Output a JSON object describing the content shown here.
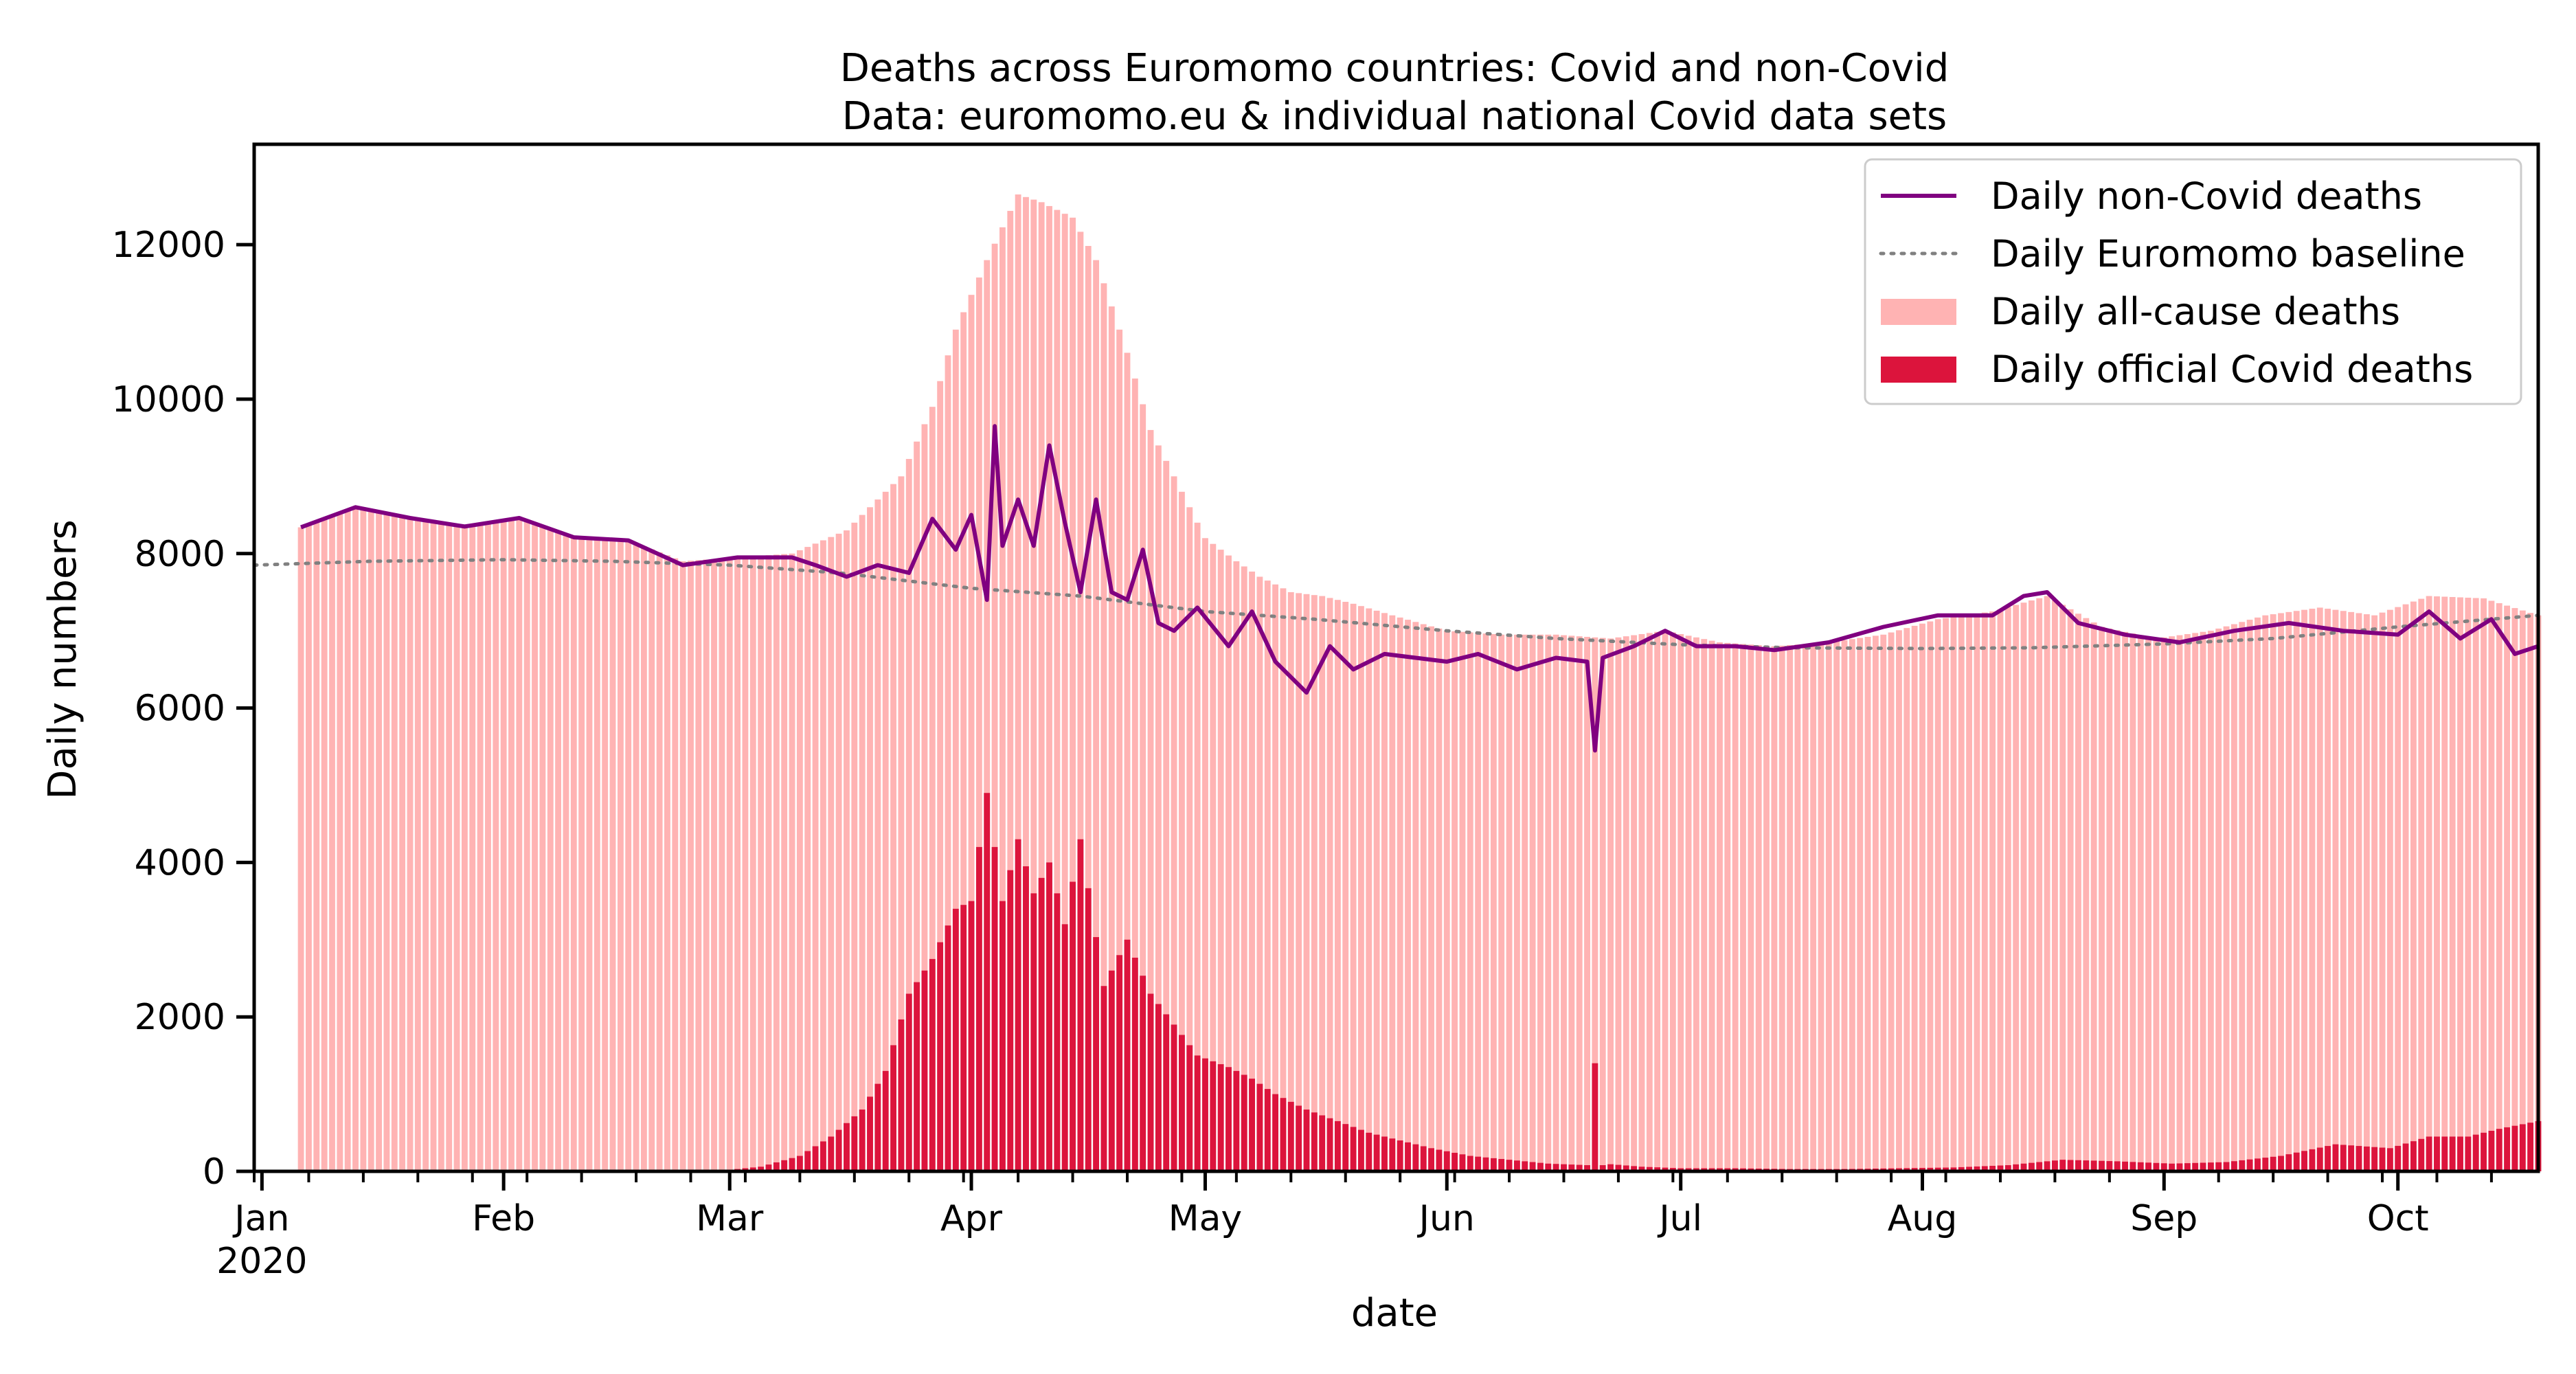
{
  "chart_data": {
    "type": "bar",
    "title": "Deaths across Euromomo countries:  Covid and non-Covid",
    "subtitle": "Data: euromomo.eu & individual national Covid data sets",
    "xlabel": "date",
    "ylabel": "Daily numbers",
    "x_ticks": [
      "Jan\n2020",
      "Feb",
      "Mar",
      "Apr",
      "May",
      "Jun",
      "Jul",
      "Aug",
      "Sep",
      "Oct"
    ],
    "x_range": [
      "2019-12-31",
      "2020-10-19"
    ],
    "y_ticks": [
      "0",
      "2000",
      "4000",
      "6000",
      "8000",
      "10000",
      "12000"
    ],
    "ylim": [
      0,
      13300
    ],
    "grid": false,
    "legend_position": "top-right",
    "colors": {
      "non_covid": "#800080",
      "baseline": "#808080",
      "all_cause": "#ffb3b3",
      "covid": "#dc143c"
    },
    "legend": [
      {
        "label": "Daily non-Covid deaths",
        "kind": "line",
        "color": "#800080"
      },
      {
        "label": "Daily Euromomo baseline",
        "kind": "dotted",
        "color": "#808080"
      },
      {
        "label": "Daily all-cause deaths",
        "kind": "patch",
        "color": "#ffb3b3"
      },
      {
        "label": "Daily official Covid deaths",
        "kind": "patch",
        "color": "#dc143c"
      }
    ],
    "series": [
      {
        "name": "Daily all-cause deaths",
        "type": "bar",
        "x": [
          "2020-01-06",
          "2020-01-13",
          "2020-01-20",
          "2020-01-27",
          "2020-02-03",
          "2020-02-10",
          "2020-02-17",
          "2020-02-24",
          "2020-03-02",
          "2020-03-09",
          "2020-03-16",
          "2020-03-23",
          "2020-03-27",
          "2020-03-30",
          "2020-04-03",
          "2020-04-07",
          "2020-04-10",
          "2020-04-14",
          "2020-04-17",
          "2020-04-21",
          "2020-04-24",
          "2020-04-28",
          "2020-05-01",
          "2020-05-05",
          "2020-05-08",
          "2020-05-12",
          "2020-05-16",
          "2020-05-20",
          "2020-05-25",
          "2020-06-01",
          "2020-06-08",
          "2020-06-15",
          "2020-06-22",
          "2020-06-29",
          "2020-07-06",
          "2020-07-13",
          "2020-07-20",
          "2020-07-27",
          "2020-08-03",
          "2020-08-10",
          "2020-08-17",
          "2020-08-24",
          "2020-08-31",
          "2020-09-07",
          "2020-09-14",
          "2020-09-21",
          "2020-09-28",
          "2020-10-05",
          "2020-10-12",
          "2020-10-19"
        ],
        "values": [
          8340,
          8600,
          8460,
          8350,
          8460,
          8210,
          8170,
          7900,
          7950,
          8000,
          8300,
          9000,
          9900,
          10900,
          11800,
          12650,
          12550,
          12350,
          11800,
          10600,
          9600,
          8800,
          8200,
          7900,
          7700,
          7500,
          7450,
          7350,
          7200,
          7000,
          6950,
          6950,
          6900,
          7000,
          6850,
          6800,
          6850,
          6950,
          7150,
          7250,
          7450,
          7050,
          6900,
          7000,
          7200,
          7300,
          7200,
          7450,
          7420,
          7200
        ]
      },
      {
        "name": "Daily non-Covid deaths",
        "type": "line",
        "x": [
          "2020-01-06",
          "2020-01-13",
          "2020-01-20",
          "2020-01-27",
          "2020-02-03",
          "2020-02-10",
          "2020-02-17",
          "2020-02-24",
          "2020-03-02",
          "2020-03-09",
          "2020-03-12",
          "2020-03-16",
          "2020-03-20",
          "2020-03-24",
          "2020-03-27",
          "2020-03-30",
          "2020-04-01",
          "2020-04-03",
          "2020-04-04",
          "2020-04-05",
          "2020-04-07",
          "2020-04-09",
          "2020-04-11",
          "2020-04-13",
          "2020-04-15",
          "2020-04-17",
          "2020-04-19",
          "2020-04-21",
          "2020-04-23",
          "2020-04-25",
          "2020-04-27",
          "2020-04-30",
          "2020-05-04",
          "2020-05-07",
          "2020-05-10",
          "2020-05-14",
          "2020-05-17",
          "2020-05-20",
          "2020-05-24",
          "2020-05-28",
          "2020-06-01",
          "2020-06-05",
          "2020-06-10",
          "2020-06-15",
          "2020-06-19",
          "2020-06-20",
          "2020-06-21",
          "2020-06-25",
          "2020-06-29",
          "2020-07-03",
          "2020-07-08",
          "2020-07-13",
          "2020-07-20",
          "2020-07-27",
          "2020-08-03",
          "2020-08-10",
          "2020-08-14",
          "2020-08-17",
          "2020-08-21",
          "2020-08-27",
          "2020-09-03",
          "2020-09-10",
          "2020-09-17",
          "2020-09-24",
          "2020-10-01",
          "2020-10-05",
          "2020-10-09",
          "2020-10-13",
          "2020-10-16",
          "2020-10-19"
        ],
        "values": [
          8340,
          8600,
          8460,
          8350,
          8460,
          8210,
          8170,
          7850,
          7950,
          7950,
          7850,
          7700,
          7850,
          7750,
          8450,
          8050,
          8500,
          7400,
          9650,
          8100,
          8700,
          8100,
          9400,
          8400,
          7500,
          8700,
          7500,
          7400,
          8050,
          7100,
          7000,
          7300,
          6800,
          7250,
          6600,
          6200,
          6800,
          6500,
          6700,
          6650,
          6600,
          6700,
          6500,
          6650,
          6600,
          5450,
          6650,
          6800,
          7000,
          6800,
          6800,
          6750,
          6850,
          7050,
          7200,
          7200,
          7450,
          7500,
          7100,
          6950,
          6850,
          7000,
          7100,
          7000,
          6950,
          7250,
          6900,
          7150,
          6700,
          6800
        ]
      },
      {
        "name": "Daily Euromomo baseline",
        "type": "line",
        "x": [
          "2019-12-31",
          "2020-01-15",
          "2020-02-01",
          "2020-02-15",
          "2020-03-01",
          "2020-03-15",
          "2020-04-01",
          "2020-04-15",
          "2020-05-01",
          "2020-05-15",
          "2020-06-01",
          "2020-06-15",
          "2020-07-01",
          "2020-07-15",
          "2020-08-01",
          "2020-08-15",
          "2020-09-01",
          "2020-09-15",
          "2020-10-01",
          "2020-10-19"
        ],
        "values": [
          7850,
          7900,
          7920,
          7900,
          7850,
          7750,
          7550,
          7450,
          7250,
          7150,
          7000,
          6900,
          6820,
          6780,
          6770,
          6780,
          6830,
          6900,
          7050,
          7200
        ]
      },
      {
        "name": "Daily official Covid deaths",
        "type": "bar",
        "x": [
          "2020-03-01",
          "2020-03-05",
          "2020-03-10",
          "2020-03-14",
          "2020-03-18",
          "2020-03-21",
          "2020-03-24",
          "2020-03-27",
          "2020-03-30",
          "2020-04-01",
          "2020-04-03",
          "2020-04-05",
          "2020-04-07",
          "2020-04-09",
          "2020-04-11",
          "2020-04-13",
          "2020-04-15",
          "2020-04-18",
          "2020-04-21",
          "2020-04-24",
          "2020-04-27",
          "2020-04-30",
          "2020-05-04",
          "2020-05-07",
          "2020-05-10",
          "2020-05-14",
          "2020-05-18",
          "2020-05-22",
          "2020-05-26",
          "2020-05-30",
          "2020-06-04",
          "2020-06-09",
          "2020-06-14",
          "2020-06-19",
          "2020-06-20",
          "2020-06-21",
          "2020-06-26",
          "2020-07-01",
          "2020-07-08",
          "2020-07-15",
          "2020-07-22",
          "2020-07-29",
          "2020-08-05",
          "2020-08-12",
          "2020-08-19",
          "2020-08-26",
          "2020-09-02",
          "2020-09-09",
          "2020-09-16",
          "2020-09-23",
          "2020-09-30",
          "2020-10-05",
          "2020-10-10",
          "2020-10-14",
          "2020-10-19"
        ],
        "values": [
          20,
          60,
          200,
          450,
          800,
          1300,
          2300,
          2750,
          3400,
          3500,
          4900,
          3500,
          4300,
          3600,
          4000,
          3200,
          4300,
          2400,
          3000,
          2300,
          1900,
          1500,
          1350,
          1200,
          1000,
          800,
          650,
          500,
          400,
          300,
          200,
          150,
          100,
          80,
          1400,
          100,
          60,
          40,
          40,
          30,
          30,
          40,
          50,
          80,
          150,
          130,
          100,
          120,
          200,
          350,
          300,
          450,
          450,
          550,
          650
        ]
      }
    ]
  }
}
